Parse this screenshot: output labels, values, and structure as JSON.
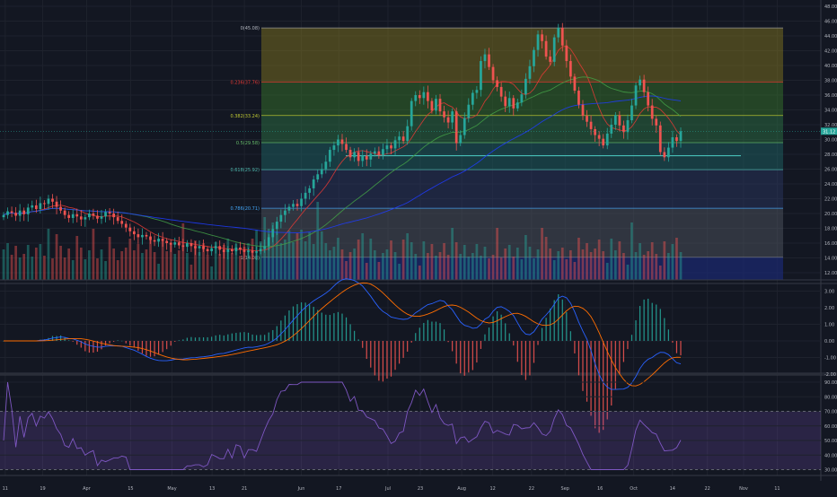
{
  "theme": {
    "background": "#131722",
    "grid": "#1e222d",
    "axis_text": "#b2b5be",
    "up": "#26a69a",
    "down": "#ef5350",
    "pane_border": "#363a45"
  },
  "price_axis": {
    "ticks": [
      "48.00",
      "46.00",
      "44.00",
      "42.00",
      "40.00",
      "38.00",
      "36.00",
      "34.00",
      "32.00",
      "30.00",
      "28.00",
      "26.00",
      "24.00",
      "22.00",
      "20.00",
      "18.00",
      "16.00",
      "14.00",
      "12.00"
    ],
    "last_price_label": "31.12"
  },
  "time_axis": {
    "labels": [
      "11",
      "19",
      "Apr",
      "15",
      "May",
      "13",
      "21",
      "Jun",
      "17",
      "Jul",
      "23",
      "Aug",
      "12",
      "22",
      "Sep",
      "16",
      "Oct",
      "14",
      "22",
      "Nov",
      "11"
    ]
  },
  "fibonacci": {
    "levels": [
      {
        "label": "0(45.08)",
        "value": 45.08,
        "band_color": "#7f2a33"
      },
      {
        "label": "0.236(37.76)",
        "value": 37.76,
        "band_color": "#8a7d1f",
        "text_color": "#e53935"
      },
      {
        "label": "0.382(33.24)",
        "value": 33.24,
        "band_color": "#3a7d2c",
        "text_color": "#c0ca33"
      },
      {
        "label": "0.5(29.58)",
        "value": 29.58,
        "band_color": "#2f7a48",
        "text_color": "#66bb6a"
      },
      {
        "label": "0.618(25.92)",
        "value": 25.92,
        "band_color": "#1f6b6a",
        "text_color": "#4db6ac"
      },
      {
        "label": "0.786(20.71)",
        "value": 20.71,
        "band_color": "#2d3a66",
        "text_color": "#42a5f5"
      },
      {
        "label": "1(14.08)",
        "value": 14.08,
        "band_color": "#555a66",
        "text_color": "#9e9e9e"
      }
    ],
    "support_line": 27.8
  },
  "macd_axis": {
    "ticks": [
      "3.00",
      "2.00",
      "1.00",
      "0.00",
      "-1.00",
      "-2.00"
    ]
  },
  "rsi_axis": {
    "ticks": [
      "90.00",
      "80.00",
      "70.00",
      "60.00",
      "50.00",
      "40.00",
      "30.00"
    ]
  },
  "chart_data": {
    "type": "candlestick",
    "price_series": {
      "name": "",
      "close": [
        19.8,
        20.3,
        20.1,
        19.7,
        20.4,
        19.9,
        20.8,
        21.1,
        20.6,
        21.4,
        21.3,
        22.0,
        21.6,
        20.9,
        20.4,
        19.8,
        19.4,
        19.9,
        19.6,
        19.2,
        19.5,
        20.0,
        19.7,
        19.3,
        19.6,
        20.2,
        20.0,
        19.5,
        19.0,
        18.6,
        18.1,
        17.6,
        17.2,
        16.8,
        17.1,
        16.9,
        16.4,
        16.2,
        16.6,
        16.3,
        16.0,
        15.8,
        16.1,
        15.7,
        15.5,
        16.0,
        15.6,
        15.3,
        15.6,
        15.2,
        14.9,
        15.3,
        15.6,
        15.1,
        14.8,
        15.2,
        14.9,
        15.4,
        15.1,
        14.8,
        15.0,
        14.7,
        14.9,
        15.2,
        15.6,
        16.8,
        17.9,
        18.9,
        19.8,
        20.4,
        20.9,
        21.3,
        21.0,
        22.0,
        22.8,
        23.4,
        24.6,
        25.3,
        26.0,
        27.0,
        28.6,
        29.2,
        30.0,
        29.4,
        28.6,
        27.6,
        28.3,
        27.1,
        27.8,
        27.3,
        28.1,
        28.4,
        27.9,
        28.7,
        29.2,
        28.8,
        29.9,
        30.4,
        29.8,
        31.8,
        35.2,
        36.0,
        35.6,
        36.4,
        35.2,
        33.9,
        35.5,
        33.8,
        33.0,
        32.3,
        33.8,
        29.5,
        30.6,
        32.9,
        34.7,
        36.3,
        36.7,
        40.6,
        41.5,
        39.8,
        38.0,
        37.1,
        35.8,
        34.5,
        35.6,
        34.2,
        35.0,
        36.1,
        38.2,
        39.9,
        42.1,
        44.2,
        43.3,
        41.2,
        40.5,
        43.8,
        45.1,
        42.7,
        40.6,
        38.5,
        36.6,
        34.7,
        33.2,
        32.4,
        31.4,
        30.6,
        30.1,
        29.2,
        30.8,
        32.0,
        33.3,
        31.9,
        31.0,
        32.6,
        34.6,
        37.3,
        38.1,
        36.4,
        34.6,
        32.8,
        31.9,
        28.3,
        27.6,
        28.9,
        30.3,
        29.8,
        31.12
      ]
    },
    "volume_series": {
      "name": ""
    },
    "macd": {
      "histogram_zero": 0.0
    },
    "rsi": {
      "name": ""
    }
  }
}
